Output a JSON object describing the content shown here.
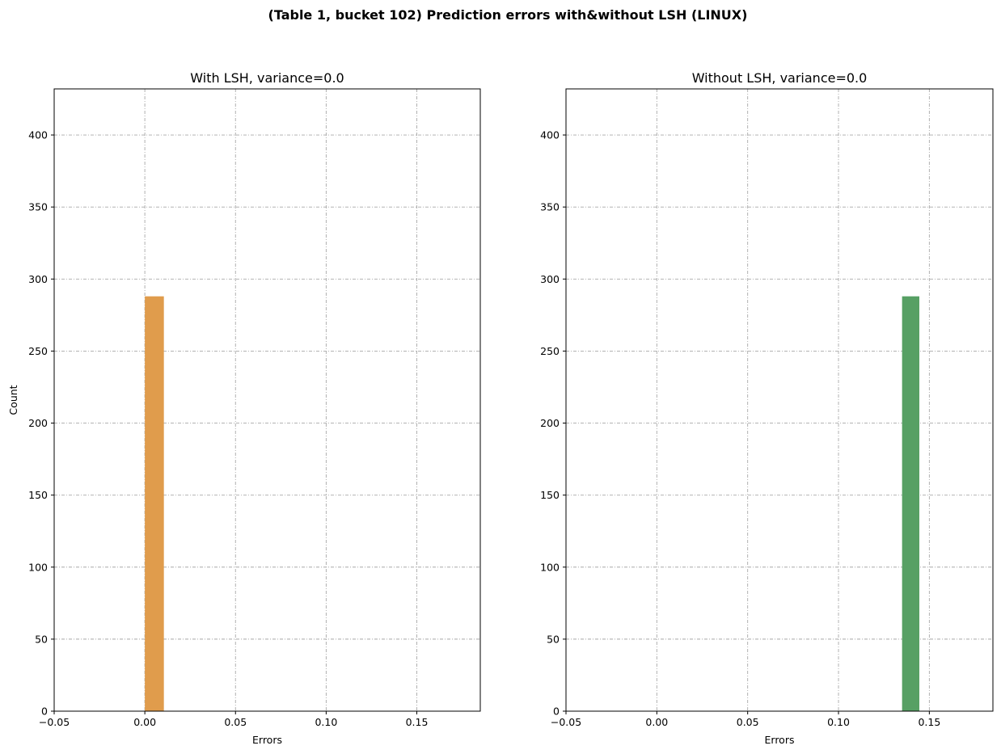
{
  "figure": {
    "suptitle": "(Table 1, bucket 102) Prediction errors with&without LSH (LINUX)"
  },
  "chart_data": [
    {
      "type": "bar",
      "title": "With LSH, variance=0.0",
      "xlabel": "Errors",
      "ylabel": "Count",
      "xlim": [
        -0.05,
        0.185
      ],
      "ylim": [
        0,
        432
      ],
      "xticks": [
        -0.05,
        0.0,
        0.05,
        0.1,
        0.15
      ],
      "xtick_labels": [
        "−0.05",
        "0.00",
        "0.05",
        "0.10",
        "0.15"
      ],
      "yticks": [
        0,
        50,
        100,
        150,
        200,
        250,
        300,
        350,
        400
      ],
      "ytick_labels": [
        "0",
        "50",
        "100",
        "150",
        "200",
        "250",
        "300",
        "350",
        "400"
      ],
      "grid": true,
      "bars": [
        {
          "x0": 0.0,
          "x1": 0.0105,
          "value": 288
        }
      ],
      "color": "#e09c4c"
    },
    {
      "type": "bar",
      "title": "Without LSH, variance=0.0",
      "xlabel": "Errors",
      "ylabel": "",
      "xlim": [
        -0.05,
        0.185
      ],
      "ylim": [
        0,
        432
      ],
      "xticks": [
        -0.05,
        0.0,
        0.05,
        0.1,
        0.15
      ],
      "xtick_labels": [
        "−0.05",
        "0.00",
        "0.05",
        "0.10",
        "0.15"
      ],
      "yticks": [
        0,
        50,
        100,
        150,
        200,
        250,
        300,
        350,
        400
      ],
      "ytick_labels": [
        "0",
        "50",
        "100",
        "150",
        "200",
        "250",
        "300",
        "350",
        "400"
      ],
      "grid": true,
      "bars": [
        {
          "x0": 0.135,
          "x1": 0.1445,
          "value": 288
        }
      ],
      "color": "#57a064"
    }
  ]
}
